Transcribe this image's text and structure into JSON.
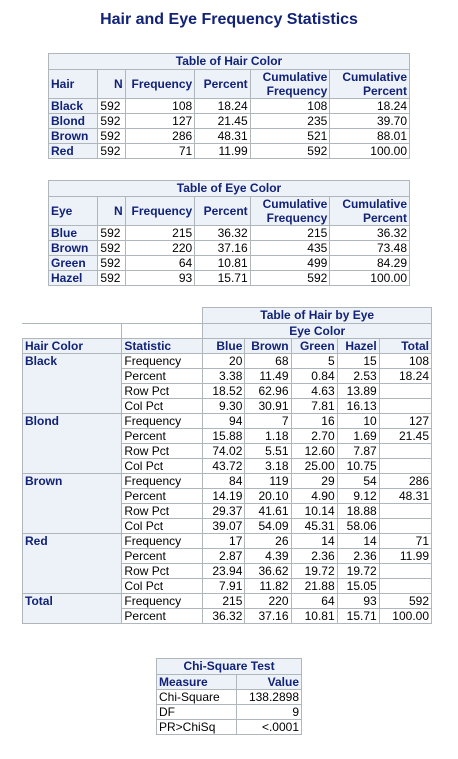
{
  "title": "Hair and Eye Frequency Statistics",
  "hair_table": {
    "caption": "Table of Hair Color",
    "headers": [
      "Hair",
      "N",
      "Frequency",
      "Percent",
      "Cumulative Frequency",
      "Cumulative Percent"
    ],
    "header_cum_freq_1": "Cumulative",
    "header_cum_freq_2": "Frequency",
    "header_cum_pct_1": "Cumulative",
    "header_cum_pct_2": "Percent",
    "rows": [
      [
        "Black",
        "592",
        "108",
        "18.24",
        "108",
        "18.24"
      ],
      [
        "Blond",
        "592",
        "127",
        "21.45",
        "235",
        "39.70"
      ],
      [
        "Brown",
        "592",
        "286",
        "48.31",
        "521",
        "88.01"
      ],
      [
        "Red",
        "592",
        "71",
        "11.99",
        "592",
        "100.00"
      ]
    ]
  },
  "eye_table": {
    "caption": "Table of Eye Color",
    "headers": [
      "Eye",
      "N",
      "Frequency",
      "Percent"
    ],
    "header_cum_freq_1": "Cumulative",
    "header_cum_freq_2": "Frequency",
    "header_cum_pct_1": "Cumulative",
    "header_cum_pct_2": "Percent",
    "rows": [
      [
        "Blue",
        "592",
        "215",
        "36.32",
        "215",
        "36.32"
      ],
      [
        "Brown",
        "592",
        "220",
        "37.16",
        "435",
        "73.48"
      ],
      [
        "Green",
        "592",
        "64",
        "10.81",
        "499",
        "84.29"
      ],
      [
        "Hazel",
        "592",
        "93",
        "15.71",
        "592",
        "100.00"
      ]
    ]
  },
  "cross_table": {
    "caption": "Table of Hair by Eye",
    "eye_color_label": "Eye Color",
    "headers": [
      "Hair Color",
      "Statistic",
      "Blue",
      "Brown",
      "Green",
      "Hazel",
      "Total"
    ],
    "groups": [
      {
        "label": "Black",
        "rows": [
          [
            "Frequency",
            "20",
            "68",
            "5",
            "15",
            "108"
          ],
          [
            "Percent",
            "3.38",
            "11.49",
            "0.84",
            "2.53",
            "18.24"
          ],
          [
            "Row Pct",
            "18.52",
            "62.96",
            "4.63",
            "13.89",
            ""
          ],
          [
            "Col Pct",
            "9.30",
            "30.91",
            "7.81",
            "16.13",
            ""
          ]
        ]
      },
      {
        "label": "Blond",
        "rows": [
          [
            "Frequency",
            "94",
            "7",
            "16",
            "10",
            "127"
          ],
          [
            "Percent",
            "15.88",
            "1.18",
            "2.70",
            "1.69",
            "21.45"
          ],
          [
            "Row Pct",
            "74.02",
            "5.51",
            "12.60",
            "7.87",
            ""
          ],
          [
            "Col Pct",
            "43.72",
            "3.18",
            "25.00",
            "10.75",
            ""
          ]
        ]
      },
      {
        "label": "Brown",
        "rows": [
          [
            "Frequency",
            "84",
            "119",
            "29",
            "54",
            "286"
          ],
          [
            "Percent",
            "14.19",
            "20.10",
            "4.90",
            "9.12",
            "48.31"
          ],
          [
            "Row Pct",
            "29.37",
            "41.61",
            "10.14",
            "18.88",
            ""
          ],
          [
            "Col Pct",
            "39.07",
            "54.09",
            "45.31",
            "58.06",
            ""
          ]
        ]
      },
      {
        "label": "Red",
        "rows": [
          [
            "Frequency",
            "17",
            "26",
            "14",
            "14",
            "71"
          ],
          [
            "Percent",
            "2.87",
            "4.39",
            "2.36",
            "2.36",
            "11.99"
          ],
          [
            "Row Pct",
            "23.94",
            "36.62",
            "19.72",
            "19.72",
            ""
          ],
          [
            "Col Pct",
            "7.91",
            "11.82",
            "21.88",
            "15.05",
            ""
          ]
        ]
      },
      {
        "label": "Total",
        "rows": [
          [
            "Frequency",
            "215",
            "220",
            "64",
            "93",
            "592"
          ],
          [
            "Percent",
            "36.32",
            "37.16",
            "10.81",
            "15.71",
            "100.00"
          ]
        ]
      }
    ]
  },
  "chi_table": {
    "caption": "Chi-Square Test",
    "headers": [
      "Measure",
      "Value"
    ],
    "rows": [
      [
        "Chi-Square",
        "138.2898"
      ],
      [
        "DF",
        "9"
      ],
      [
        "PR>ChiSq",
        "<.0001"
      ]
    ]
  },
  "colors": {
    "header_bg": "#edf2f9",
    "header_text": "#112277",
    "border": "#b0b7bb"
  }
}
